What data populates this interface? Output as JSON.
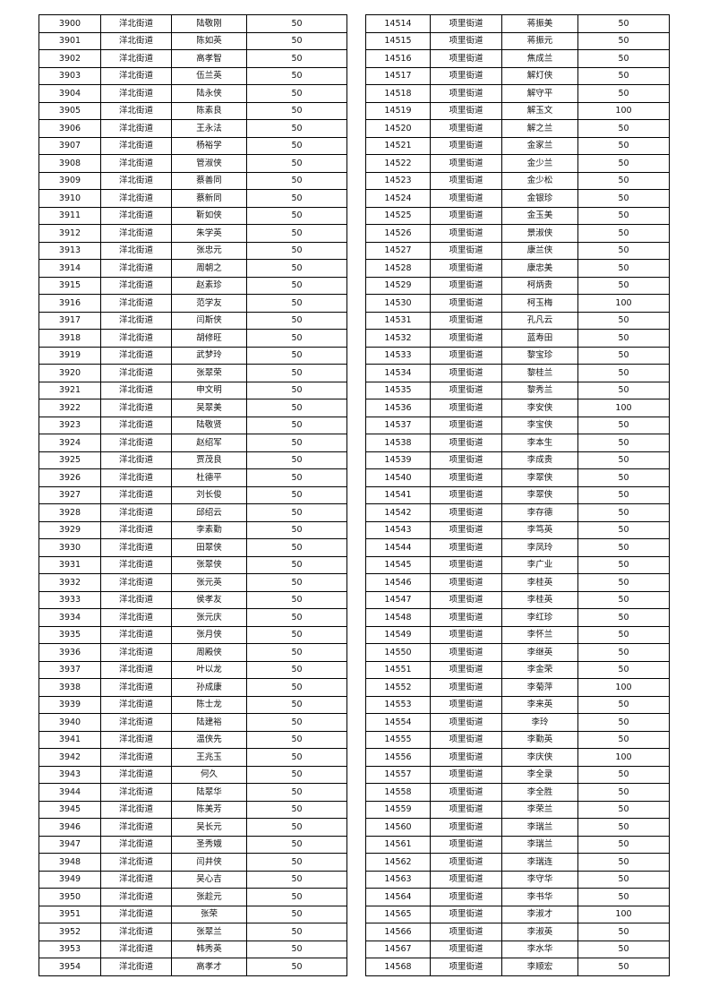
{
  "tables": [
    {
      "rows": [
        [
          3900,
          "洋北街道",
          "陆敬刚",
          50
        ],
        [
          3901,
          "洋北街道",
          "陈如英",
          50
        ],
        [
          3902,
          "洋北街道",
          "高孝智",
          50
        ],
        [
          3903,
          "洋北街道",
          "伍兰英",
          50
        ],
        [
          3904,
          "洋北街道",
          "陆永侠",
          50
        ],
        [
          3905,
          "洋北街道",
          "陈素良",
          50
        ],
        [
          3906,
          "洋北街道",
          "王永法",
          50
        ],
        [
          3907,
          "洋北街道",
          "杨裕学",
          50
        ],
        [
          3908,
          "洋北街道",
          "管淑侠",
          50
        ],
        [
          3909,
          "洋北街道",
          "蔡善同",
          50
        ],
        [
          3910,
          "洋北街道",
          "蔡新同",
          50
        ],
        [
          3911,
          "洋北街道",
          "靳如侠",
          50
        ],
        [
          3912,
          "洋北街道",
          "朱学英",
          50
        ],
        [
          3913,
          "洋北街道",
          "张忠元",
          50
        ],
        [
          3914,
          "洋北街道",
          "周朝之",
          50
        ],
        [
          3915,
          "洋北街道",
          "赵素珍",
          50
        ],
        [
          3916,
          "洋北街道",
          "范学友",
          50
        ],
        [
          3917,
          "洋北街道",
          "闫斯侠",
          50
        ],
        [
          3918,
          "洋北街道",
          "胡修旺",
          50
        ],
        [
          3919,
          "洋北街道",
          "武梦玲",
          50
        ],
        [
          3920,
          "洋北街道",
          "张翠荣",
          50
        ],
        [
          3921,
          "洋北街道",
          "申文明",
          50
        ],
        [
          3922,
          "洋北街道",
          "吴翠美",
          50
        ],
        [
          3923,
          "洋北街道",
          "陆敬贤",
          50
        ],
        [
          3924,
          "洋北街道",
          "赵绍军",
          50
        ],
        [
          3925,
          "洋北街道",
          "贾茂良",
          50
        ],
        [
          3926,
          "洋北街道",
          "杜德平",
          50
        ],
        [
          3927,
          "洋北街道",
          "刘长俊",
          50
        ],
        [
          3928,
          "洋北街道",
          "邱绍云",
          50
        ],
        [
          3929,
          "洋北街道",
          "李素勤",
          50
        ],
        [
          3930,
          "洋北街道",
          "田翠侠",
          50
        ],
        [
          3931,
          "洋北街道",
          "张翠侠",
          50
        ],
        [
          3932,
          "洋北街道",
          "张元英",
          50
        ],
        [
          3933,
          "洋北街道",
          "侯孝友",
          50
        ],
        [
          3934,
          "洋北街道",
          "张元庆",
          50
        ],
        [
          3935,
          "洋北街道",
          "张月侠",
          50
        ],
        [
          3936,
          "洋北街道",
          "周殿侠",
          50
        ],
        [
          3937,
          "洋北街道",
          "叶以龙",
          50
        ],
        [
          3938,
          "洋北街道",
          "孙成康",
          50
        ],
        [
          3939,
          "洋北街道",
          "陈士龙",
          50
        ],
        [
          3940,
          "洋北街道",
          "陆建裕",
          50
        ],
        [
          3941,
          "洋北街道",
          "温侠先",
          50
        ],
        [
          3942,
          "洋北街道",
          "王兆玉",
          50
        ],
        [
          3943,
          "洋北街道",
          "何久",
          50
        ],
        [
          3944,
          "洋北街道",
          "陆翠华",
          50
        ],
        [
          3945,
          "洋北街道",
          "陈美芳",
          50
        ],
        [
          3946,
          "洋北街道",
          "吴长元",
          50
        ],
        [
          3947,
          "洋北街道",
          "圣秀娥",
          50
        ],
        [
          3948,
          "洋北街道",
          "闫井侠",
          50
        ],
        [
          3949,
          "洋北街道",
          "吴心吉",
          50
        ],
        [
          3950,
          "洋北街道",
          "张趁元",
          50
        ],
        [
          3951,
          "洋北街道",
          "张荣",
          50
        ],
        [
          3952,
          "洋北街道",
          "张翠兰",
          50
        ],
        [
          3953,
          "洋北街道",
          "韩秀英",
          50
        ],
        [
          3954,
          "洋北街道",
          "高孝才",
          50
        ]
      ]
    },
    {
      "rows": [
        [
          14514,
          "项里街道",
          "蒋振美",
          50
        ],
        [
          14515,
          "项里街道",
          "蒋振元",
          50
        ],
        [
          14516,
          "项里街道",
          "焦成兰",
          50
        ],
        [
          14517,
          "项里街道",
          "解灯侠",
          50
        ],
        [
          14518,
          "项里街道",
          "解守平",
          50
        ],
        [
          14519,
          "项里街道",
          "解玉文",
          100
        ],
        [
          14520,
          "项里街道",
          "解之兰",
          50
        ],
        [
          14521,
          "项里街道",
          "金家兰",
          50
        ],
        [
          14522,
          "项里街道",
          "金少兰",
          50
        ],
        [
          14523,
          "项里街道",
          "金少松",
          50
        ],
        [
          14524,
          "项里街道",
          "金银珍",
          50
        ],
        [
          14525,
          "项里街道",
          "金玉美",
          50
        ],
        [
          14526,
          "项里街道",
          "景淑侠",
          50
        ],
        [
          14527,
          "项里街道",
          "康兰侠",
          50
        ],
        [
          14528,
          "项里街道",
          "康忠美",
          50
        ],
        [
          14529,
          "项里街道",
          "柯炳贵",
          50
        ],
        [
          14530,
          "项里街道",
          "柯玉梅",
          100
        ],
        [
          14531,
          "项里街道",
          "孔凡云",
          50
        ],
        [
          14532,
          "项里街道",
          "蓝寿田",
          50
        ],
        [
          14533,
          "项里街道",
          "黎宝珍",
          50
        ],
        [
          14534,
          "项里街道",
          "黎桂兰",
          50
        ],
        [
          14535,
          "项里街道",
          "黎秀兰",
          50
        ],
        [
          14536,
          "项里街道",
          "李安侠",
          100
        ],
        [
          14537,
          "项里街道",
          "李宝侠",
          50
        ],
        [
          14538,
          "项里街道",
          "李本生",
          50
        ],
        [
          14539,
          "项里街道",
          "李成贵",
          50
        ],
        [
          14540,
          "项里街道",
          "李翠侠",
          50
        ],
        [
          14541,
          "项里街道",
          "李翠侠",
          50
        ],
        [
          14542,
          "项里街道",
          "李存德",
          50
        ],
        [
          14543,
          "项里街道",
          "李笃英",
          50
        ],
        [
          14544,
          "项里街道",
          "李凤玲",
          50
        ],
        [
          14545,
          "项里街道",
          "李广业",
          50
        ],
        [
          14546,
          "项里街道",
          "李桂英",
          50
        ],
        [
          14547,
          "项里街道",
          "李桂英",
          50
        ],
        [
          14548,
          "项里街道",
          "李红珍",
          50
        ],
        [
          14549,
          "项里街道",
          "李怀兰",
          50
        ],
        [
          14550,
          "项里街道",
          "李继英",
          50
        ],
        [
          14551,
          "项里街道",
          "李金荣",
          50
        ],
        [
          14552,
          "项里街道",
          "李菊萍",
          100
        ],
        [
          14553,
          "项里街道",
          "李来英",
          50
        ],
        [
          14554,
          "项里街道",
          "李玲",
          50
        ],
        [
          14555,
          "项里街道",
          "李勤英",
          50
        ],
        [
          14556,
          "项里街道",
          "李庆侠",
          100
        ],
        [
          14557,
          "项里街道",
          "李全录",
          50
        ],
        [
          14558,
          "项里街道",
          "李全胜",
          50
        ],
        [
          14559,
          "项里街道",
          "李荣兰",
          50
        ],
        [
          14560,
          "项里街道",
          "李瑞兰",
          50
        ],
        [
          14561,
          "项里街道",
          "李瑞兰",
          50
        ],
        [
          14562,
          "项里街道",
          "李瑞连",
          50
        ],
        [
          14563,
          "项里街道",
          "李守华",
          50
        ],
        [
          14564,
          "项里街道",
          "李书华",
          50
        ],
        [
          14565,
          "项里街道",
          "李淑才",
          100
        ],
        [
          14566,
          "项里街道",
          "李淑英",
          50
        ],
        [
          14567,
          "项里街道",
          "李水华",
          50
        ],
        [
          14568,
          "项里街道",
          "李顺宏",
          50
        ]
      ]
    }
  ]
}
